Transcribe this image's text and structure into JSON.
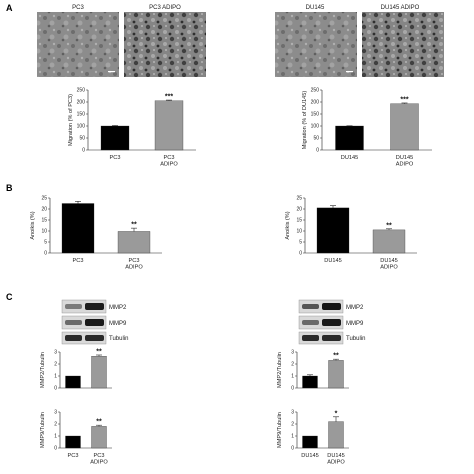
{
  "panels": {
    "a": "A",
    "b": "B",
    "c": "C"
  },
  "colors": {
    "control": "#000000",
    "adipo": "#9a9a9a"
  },
  "micrographs": {
    "left": [
      {
        "label": "PC3"
      },
      {
        "label": "PC3 ADIPO"
      }
    ],
    "right": [
      {
        "label": "DU145"
      },
      {
        "label": "DU145 ADIPO"
      }
    ]
  },
  "blots": {
    "left": [
      "MMP2",
      "MMP9",
      "Tubulin"
    ],
    "right": [
      "MMP2",
      "MMP9",
      "Tubulin"
    ]
  },
  "chart_data": [
    {
      "id": "migration_pc3",
      "type": "bar",
      "categories": [
        "PC3",
        "PC3\nADIPO"
      ],
      "values": [
        100,
        205
      ],
      "errors": [
        2,
        3
      ],
      "significance": [
        "",
        "***"
      ],
      "ylabel": "Migration (% of PC3)",
      "ylim": [
        0,
        250
      ],
      "yticks": [
        0,
        50,
        100,
        150,
        200,
        250
      ]
    },
    {
      "id": "migration_du145",
      "type": "bar",
      "categories": [
        "DU145",
        "DU145\nADIPO"
      ],
      "values": [
        100,
        193
      ],
      "errors": [
        1,
        3
      ],
      "significance": [
        "",
        "***"
      ],
      "ylabel": "Migration (% of DU145)",
      "ylim": [
        0,
        250
      ],
      "yticks": [
        0,
        50,
        100,
        150,
        200,
        250
      ]
    },
    {
      "id": "anoikis_pc3",
      "type": "bar",
      "categories": [
        "PC3",
        "PC3\nADIPO"
      ],
      "values": [
        22.5,
        9.8
      ],
      "errors": [
        1.0,
        1.5
      ],
      "significance": [
        "",
        "**"
      ],
      "ylabel": "Anoikis (%)",
      "ylim": [
        0,
        25
      ],
      "yticks": [
        0,
        5,
        10,
        15,
        20,
        25
      ]
    },
    {
      "id": "anoikis_du145",
      "type": "bar",
      "categories": [
        "DU145",
        "DU145\nADIPO"
      ],
      "values": [
        20.5,
        10.5
      ],
      "errors": [
        1.0,
        0.5
      ],
      "significance": [
        "",
        "**"
      ],
      "ylabel": "Anoikis (%)",
      "ylim": [
        0,
        25
      ],
      "yticks": [
        0,
        5,
        10,
        15,
        20,
        25
      ]
    },
    {
      "id": "mmp2_pc3",
      "type": "bar",
      "categories": [
        "",
        ""
      ],
      "values": [
        1.0,
        2.65
      ],
      "errors": [
        0.0,
        0.1
      ],
      "significance": [
        "",
        "**"
      ],
      "ylabel": "MMP2/Tubulin",
      "ylim": [
        0,
        3
      ],
      "yticks": [
        0,
        1,
        2,
        3
      ]
    },
    {
      "id": "mmp2_du145",
      "type": "bar",
      "categories": [
        "",
        ""
      ],
      "values": [
        1.0,
        2.3
      ],
      "errors": [
        0.1,
        0.1
      ],
      "significance": [
        "",
        "**"
      ],
      "ylabel": "MMP2/Tubulin",
      "ylim": [
        0,
        3
      ],
      "yticks": [
        0,
        1,
        2,
        3
      ]
    },
    {
      "id": "mmp9_pc3",
      "type": "bar",
      "categories": [
        "PC3",
        "PC3\nADIPO"
      ],
      "values": [
        1.0,
        1.8
      ],
      "errors": [
        0.0,
        0.1
      ],
      "significance": [
        "",
        "**"
      ],
      "ylabel": "MMP9/Tubulin",
      "ylim": [
        0,
        3
      ],
      "yticks": [
        0,
        1,
        2,
        3
      ]
    },
    {
      "id": "mmp9_du145",
      "type": "bar",
      "categories": [
        "DU145",
        "DU145\nADIPO"
      ],
      "values": [
        1.0,
        2.2
      ],
      "errors": [
        0.0,
        0.4
      ],
      "significance": [
        "",
        "*"
      ],
      "ylabel": "MMP9/Tubulin",
      "ylim": [
        0,
        3
      ],
      "yticks": [
        0,
        1,
        2,
        3
      ]
    }
  ]
}
